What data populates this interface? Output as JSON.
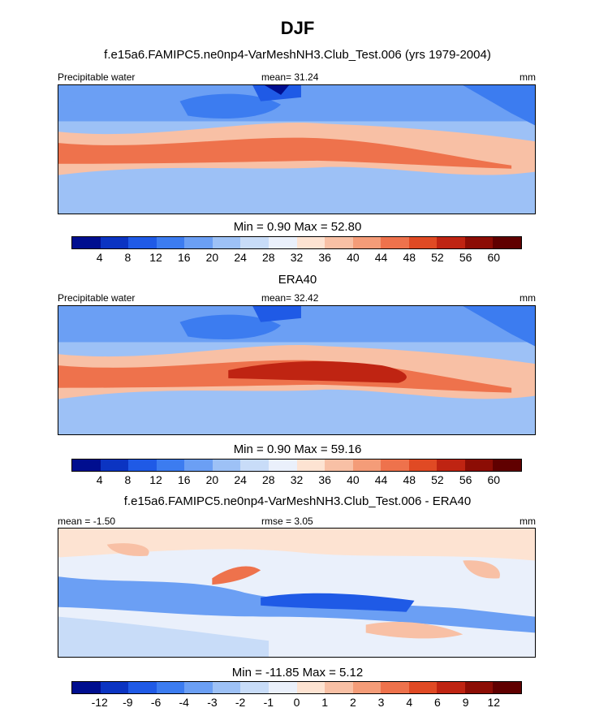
{
  "figure_title": "DJF",
  "chart_data": [
    {
      "type": "heatmap",
      "title": "f.e15a6.FAMIPC5.ne0np4-VarMeshNH3.Club_Test.006 (yrs 1979-2004)",
      "left_label": "Precipitable water",
      "center_label": "mean=  31.24",
      "units": "mm",
      "minmax": "Min =   0.90 Max =  52.80",
      "colorbar_ticks": [
        "4",
        "8",
        "12",
        "16",
        "20",
        "24",
        "28",
        "32",
        "36",
        "40",
        "44",
        "48",
        "52",
        "56",
        "60"
      ],
      "colorbar_colors": [
        "#000e8f",
        "#0b34c2",
        "#1f5ae6",
        "#3c7cf0",
        "#6b9ff4",
        "#9dc1f6",
        "#c8dcf8",
        "#eaf0fb",
        "#fde3d2",
        "#f8c0a5",
        "#f49c78",
        "#ee724c",
        "#e04a24",
        "#bf2412",
        "#8c0d05",
        "#600000"
      ]
    },
    {
      "type": "heatmap",
      "title": "ERA40",
      "left_label": "Precipitable water",
      "center_label": "mean=  32.42",
      "units": "mm",
      "minmax": "Min =   0.90 Max =  59.16",
      "colorbar_ticks": [
        "4",
        "8",
        "12",
        "16",
        "20",
        "24",
        "28",
        "32",
        "36",
        "40",
        "44",
        "48",
        "52",
        "56",
        "60"
      ],
      "colorbar_colors": [
        "#000e8f",
        "#0b34c2",
        "#1f5ae6",
        "#3c7cf0",
        "#6b9ff4",
        "#9dc1f6",
        "#c8dcf8",
        "#eaf0fb",
        "#fde3d2",
        "#f8c0a5",
        "#f49c78",
        "#ee724c",
        "#e04a24",
        "#bf2412",
        "#8c0d05",
        "#600000"
      ]
    },
    {
      "type": "heatmap",
      "title": "f.e15a6.FAMIPC5.ne0np4-VarMeshNH3.Club_Test.006 - ERA40",
      "left_label": "mean =  -1.50",
      "center_label": "rmse =   3.05",
      "units": "mm",
      "minmax": "Min = -11.85 Max =   5.12",
      "colorbar_ticks": [
        "-12",
        "-9",
        "-6",
        "-4",
        "-3",
        "-2",
        "-1",
        "0",
        "1",
        "2",
        "3",
        "4",
        "6",
        "9",
        "12"
      ],
      "colorbar_colors": [
        "#000e8f",
        "#0b34c2",
        "#1f5ae6",
        "#3c7cf0",
        "#6b9ff4",
        "#9dc1f6",
        "#c8dcf8",
        "#eaf0fb",
        "#fde3d2",
        "#f8c0a5",
        "#f49c78",
        "#ee724c",
        "#e04a24",
        "#bf2412",
        "#8c0d05",
        "#600000"
      ]
    }
  ]
}
